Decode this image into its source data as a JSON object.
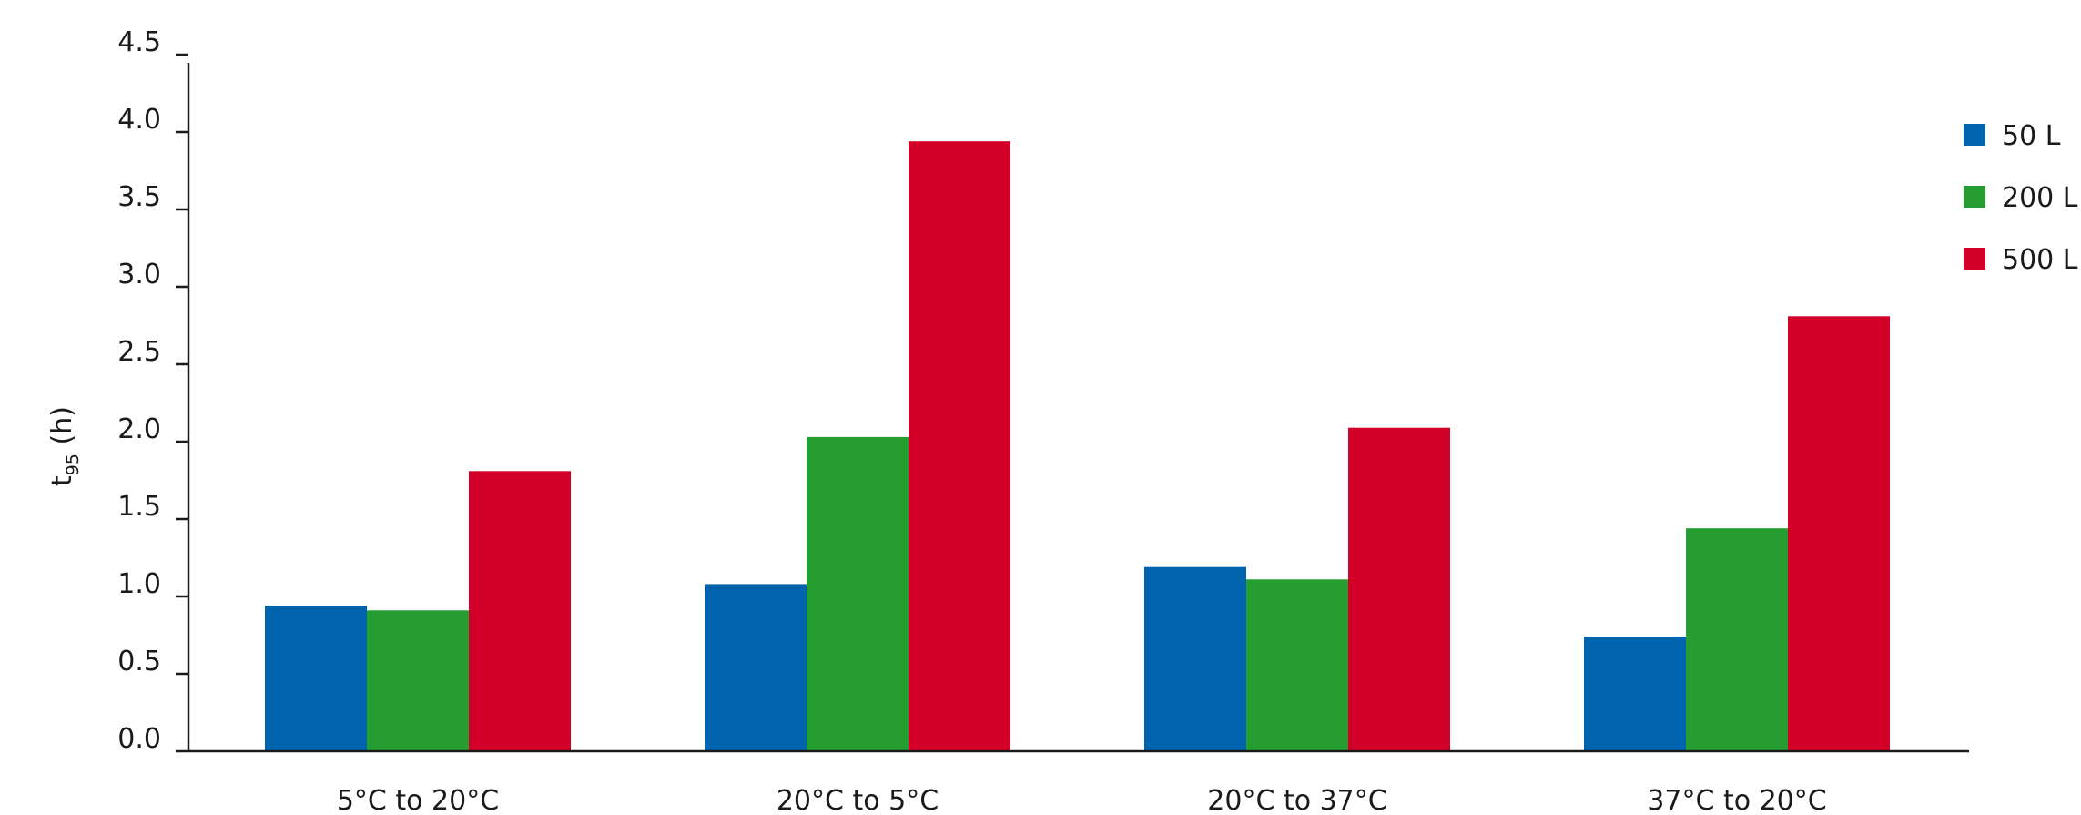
{
  "chart_data": {
    "type": "bar",
    "categories": [
      "5°C to 20°C",
      "20°C to 5°C",
      "20°C to 37°C",
      "37°C to 20°C"
    ],
    "series": [
      {
        "name": "50 L",
        "values": [
          0.94,
          1.08,
          1.19,
          0.74
        ],
        "color": "#0063AE"
      },
      {
        "name": "200 L",
        "values": [
          0.91,
          2.03,
          1.11,
          1.44
        ],
        "color": "#259D31"
      },
      {
        "name": "500 L",
        "values": [
          1.81,
          3.94,
          2.09,
          2.81
        ],
        "color": "#D20028"
      }
    ],
    "title": "",
    "xlabel": "",
    "ylabel": "t",
    "ylabel_subscript": "95",
    "ylabel_unit": " (h)",
    "ylim": [
      0,
      4.5
    ],
    "yticks": [
      0.0,
      0.5,
      1.0,
      1.5,
      2.0,
      2.5,
      3.0,
      3.5,
      4.0,
      4.5
    ],
    "ytick_labels": [
      "0.0",
      "0.5",
      "1.0",
      "1.5",
      "2.0",
      "2.5",
      "3.0",
      "3.5",
      "4.0",
      "4.5"
    ],
    "grid": false,
    "legend": "right"
  }
}
